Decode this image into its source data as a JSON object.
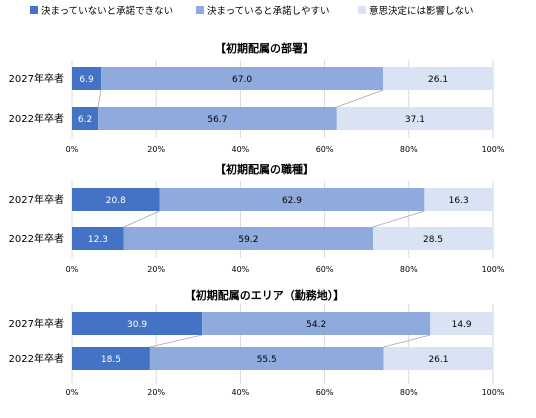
{
  "legend": [
    {
      "label": "決まっていないと承諾できない",
      "color": "#4472C4"
    },
    {
      "label": "決まっていると承諾しやすい",
      "color": "#8FAADC"
    },
    {
      "label": "意思決定には影響しない",
      "color": "#DAE3F3"
    }
  ],
  "chart_data": [
    {
      "type": "bar",
      "orientation": "horizontal-stacked-100",
      "title": "【初期配属の部署】",
      "categories": [
        "2027年卒者",
        "2022年卒者"
      ],
      "series": [
        {
          "name": "決まっていないと承諾できない",
          "values": [
            6.9,
            6.2
          ]
        },
        {
          "name": "決まっていると承諾しやすい",
          "values": [
            67.0,
            56.7
          ]
        },
        {
          "name": "意思決定には影響しない",
          "values": [
            26.1,
            37.1
          ]
        }
      ],
      "xlim": [
        0,
        100
      ],
      "xticks": [
        "0%",
        "20%",
        "40%",
        "60%",
        "80%",
        "100%"
      ],
      "grid": true,
      "legend_position": "top"
    },
    {
      "type": "bar",
      "orientation": "horizontal-stacked-100",
      "title": "【初期配属の職種】",
      "categories": [
        "2027年卒者",
        "2022年卒者"
      ],
      "series": [
        {
          "name": "決まっていないと承諾できない",
          "values": [
            20.8,
            12.3
          ]
        },
        {
          "name": "決まっていると承諾しやすい",
          "values": [
            62.9,
            59.2
          ]
        },
        {
          "name": "意思決定には影響しない",
          "values": [
            16.3,
            28.5
          ]
        }
      ],
      "xlim": [
        0,
        100
      ],
      "xticks": [
        "0%",
        "20%",
        "40%",
        "60%",
        "80%",
        "100%"
      ],
      "grid": true,
      "legend_position": "top"
    },
    {
      "type": "bar",
      "orientation": "horizontal-stacked-100",
      "title": "【初期配属のエリア（勤務地）】",
      "categories": [
        "2027年卒者",
        "2022年卒者"
      ],
      "series": [
        {
          "name": "決まっていないと承諾できない",
          "values": [
            30.9,
            18.5
          ]
        },
        {
          "name": "決まっていると承諾しやすい",
          "values": [
            54.2,
            55.5
          ]
        },
        {
          "name": "意思決定には影響しない",
          "values": [
            14.9,
            26.1
          ]
        }
      ],
      "xlim": [
        0,
        100
      ],
      "xticks": [
        "0%",
        "20%",
        "40%",
        "60%",
        "80%",
        "100%"
      ],
      "grid": true,
      "legend_position": "top"
    }
  ]
}
